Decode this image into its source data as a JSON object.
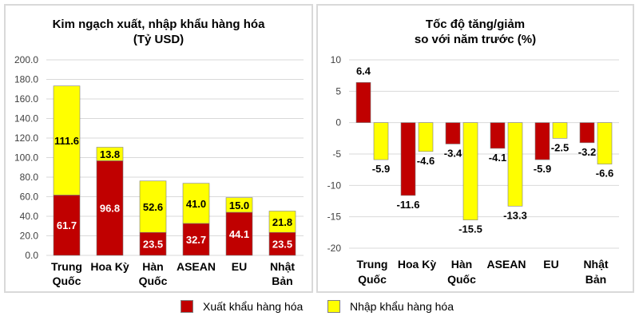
{
  "colors": {
    "export": "#c00000",
    "import": "#ffff00",
    "grid": "#d9d9d9"
  },
  "legend": [
    {
      "label": "Xuất khẩu hàng hóa",
      "color": "#c00000"
    },
    {
      "label": "Nhập khẩu hàng hóa",
      "color": "#ffff00"
    }
  ],
  "chart_data": [
    {
      "type": "bar",
      "stacked": true,
      "title": "Kim ngạch xuất, nhập khẩu hàng hóa",
      "subtitle": "(Tỷ USD)",
      "categories": [
        [
          "Trung",
          "Quốc"
        ],
        [
          "Hoa Kỳ"
        ],
        [
          "Hàn",
          "Quốc"
        ],
        [
          "ASEAN"
        ],
        [
          "EU"
        ],
        [
          "Nhật",
          "Bản"
        ]
      ],
      "yticks": [
        "0.0",
        "20.0",
        "40.0",
        "60.0",
        "80.0",
        "100.0",
        "120.0",
        "140.0",
        "160.0",
        "180.0",
        "200.0"
      ],
      "ylim": [
        0,
        200
      ],
      "grid": true,
      "series": [
        {
          "name": "Xuất khẩu hàng hóa",
          "values": [
            61.7,
            96.8,
            23.5,
            32.7,
            44.1,
            23.5
          ]
        },
        {
          "name": "Nhập khẩu hàng hóa",
          "values": [
            111.6,
            13.8,
            52.6,
            41.0,
            15.0,
            21.8
          ]
        }
      ],
      "labels": [
        [
          "61.7",
          "96.8",
          "23.5",
          "32.7",
          "44.1",
          "23.5"
        ],
        [
          "111.6",
          "13.8",
          "52.6",
          "41.0",
          "15.0",
          "21.8"
        ]
      ]
    },
    {
      "type": "bar",
      "title": "Tốc độ tăng/giảm",
      "subtitle": "so với năm trước (%)",
      "categories": [
        [
          "Trung",
          "Quốc"
        ],
        [
          "Hoa Kỳ"
        ],
        [
          "Hàn",
          "Quốc"
        ],
        [
          "ASEAN"
        ],
        [
          "EU"
        ],
        [
          "Nhật",
          "Bản"
        ]
      ],
      "yticks": [
        "-20",
        "-15",
        "-10",
        "-5",
        "0",
        "5",
        "10"
      ],
      "ylim": [
        -20,
        10
      ],
      "grid": true,
      "series": [
        {
          "name": "Xuất khẩu hàng hóa",
          "values": [
            6.4,
            -11.6,
            -3.4,
            -4.1,
            -5.9,
            -3.2
          ]
        },
        {
          "name": "Nhập khẩu hàng hóa",
          "values": [
            -5.9,
            -4.6,
            -15.5,
            -13.3,
            -2.5,
            -6.6
          ]
        }
      ],
      "labels": [
        [
          "6.4",
          "-11.6",
          "-3.4",
          "-4.1",
          "-5.9",
          "-3.2"
        ],
        [
          "-5.9",
          "-4.6",
          "-15.5",
          "-13.3",
          "-2.5",
          "-6.6"
        ]
      ]
    }
  ]
}
